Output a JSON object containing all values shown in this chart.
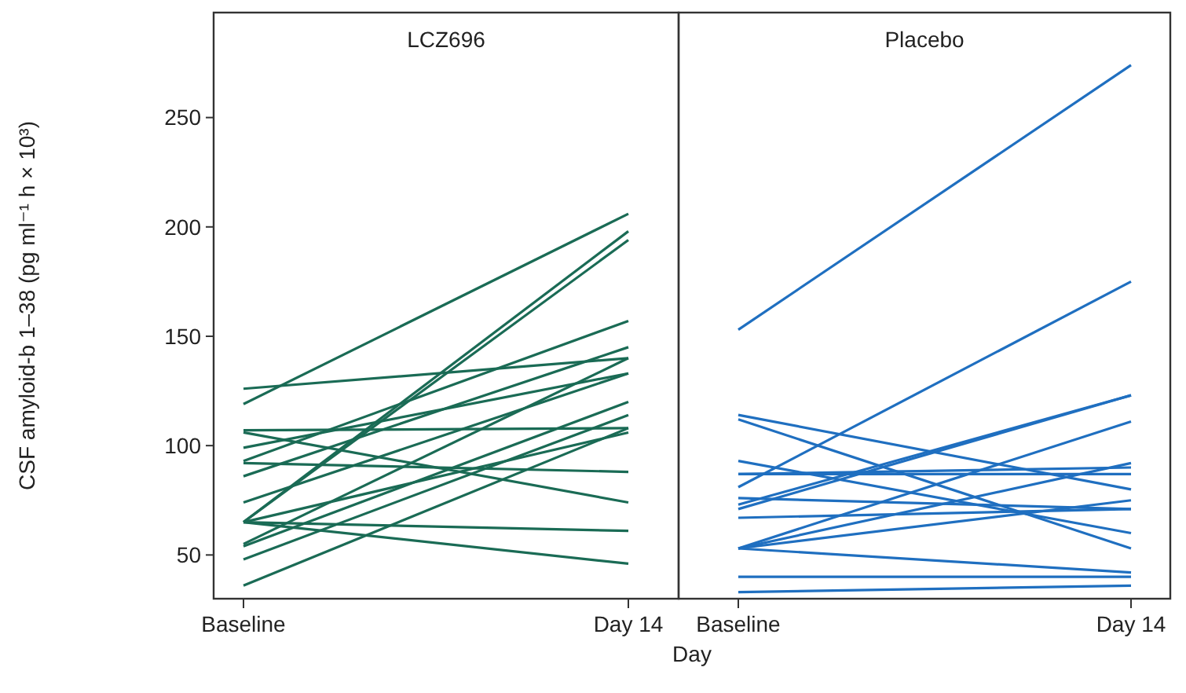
{
  "chart_data": [
    {
      "type": "line",
      "title": "LCZ696",
      "ylabel": "CSF amyloid-b 1–38 (pg ml⁻¹ h × 10³)",
      "xlabel": "Day",
      "categories": [
        "Baseline",
        "Day 14"
      ],
      "ylim": [
        30,
        298
      ],
      "yticks": [
        50,
        100,
        150,
        200,
        250
      ],
      "series": [
        {
          "color": "#1a6b55",
          "values": [
            119,
            206
          ]
        },
        {
          "color": "#1a6b55",
          "values": [
            126,
            140
          ]
        },
        {
          "color": "#1a6b55",
          "values": [
            65,
            198
          ]
        },
        {
          "color": "#1a6b55",
          "values": [
            65,
            194
          ]
        },
        {
          "color": "#1a6b55",
          "values": [
            107,
            108
          ]
        },
        {
          "color": "#1a6b55",
          "values": [
            106,
            74
          ]
        },
        {
          "color": "#1a6b55",
          "values": [
            93,
            157
          ]
        },
        {
          "color": "#1a6b55",
          "values": [
            92,
            88
          ]
        },
        {
          "color": "#1a6b55",
          "values": [
            86,
            145
          ]
        },
        {
          "color": "#1a6b55",
          "values": [
            99,
            133
          ]
        },
        {
          "color": "#1a6b55",
          "values": [
            74,
            133
          ]
        },
        {
          "color": "#1a6b55",
          "values": [
            65,
            61
          ]
        },
        {
          "color": "#1a6b55",
          "values": [
            65,
            46
          ]
        },
        {
          "color": "#1a6b55",
          "values": [
            55,
            140
          ]
        },
        {
          "color": "#1a6b55",
          "values": [
            54,
            120
          ]
        },
        {
          "color": "#1a6b55",
          "values": [
            48,
            114
          ]
        },
        {
          "color": "#1a6b55",
          "values": [
            36,
            108
          ]
        },
        {
          "color": "#1a6b55",
          "values": [
            65,
            106
          ]
        }
      ]
    },
    {
      "type": "line",
      "title": "Placebo",
      "categories": [
        "Baseline",
        "Day 14"
      ],
      "ylim": [
        30,
        298
      ],
      "tick_labels": "x",
      "series": [
        {
          "color": "#1f6fc0",
          "values": [
            153,
            274
          ]
        },
        {
          "color": "#1f6fc0",
          "values": [
            81,
            175
          ]
        },
        {
          "color": "#1f6fc0",
          "values": [
            73,
            123
          ]
        },
        {
          "color": "#1f6fc0",
          "values": [
            71,
            123
          ]
        },
        {
          "color": "#1f6fc0",
          "values": [
            53,
            111
          ]
        },
        {
          "color": "#1f6fc0",
          "values": [
            114,
            80
          ]
        },
        {
          "color": "#1f6fc0",
          "values": [
            112,
            53
          ]
        },
        {
          "color": "#1f6fc0",
          "values": [
            93,
            60
          ]
        },
        {
          "color": "#1f6fc0",
          "values": [
            87,
            90
          ]
        },
        {
          "color": "#1f6fc0",
          "values": [
            76,
            71
          ]
        },
        {
          "color": "#1f6fc0",
          "values": [
            67,
            71
          ]
        },
        {
          "color": "#1f6fc0",
          "values": [
            53,
            92
          ]
        },
        {
          "color": "#1f6fc0",
          "values": [
            53,
            75
          ]
        },
        {
          "color": "#1f6fc0",
          "values": [
            53,
            42
          ]
        },
        {
          "color": "#1f6fc0",
          "values": [
            40,
            40
          ]
        },
        {
          "color": "#1f6fc0",
          "values": [
            33,
            36
          ]
        },
        {
          "color": "#1f6fc0",
          "values": [
            87,
            87
          ]
        }
      ]
    }
  ]
}
